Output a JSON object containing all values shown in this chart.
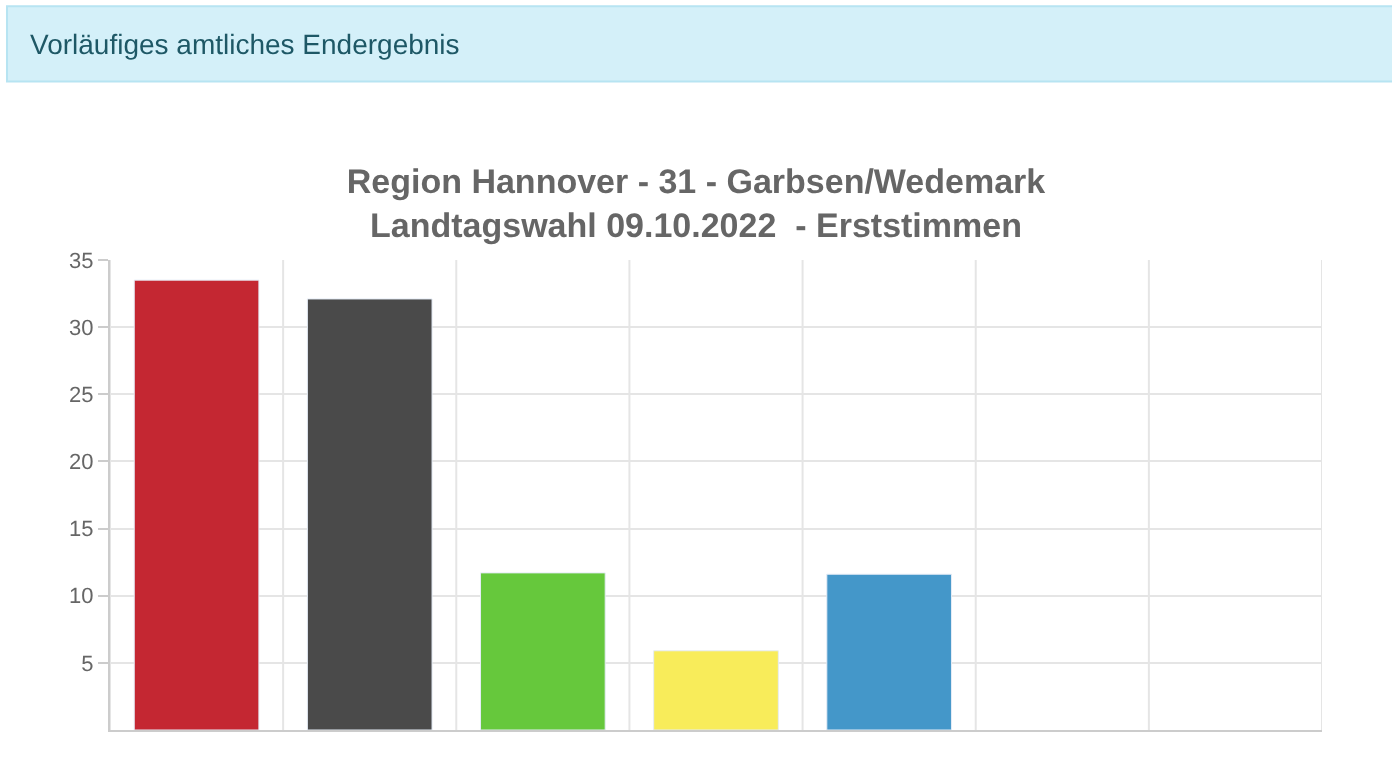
{
  "chart_data": {
    "type": "bar",
    "title": "Region Hannover - 31 - Garbsen/Wedemark\nLandtagswahl 09.10.2022  - Erststimmen",
    "annotations": [
      "Vorläufiges amtliches Endergebnis"
    ],
    "categories": [
      null,
      null,
      null,
      null,
      null,
      null,
      null
    ],
    "values": [
      33.5,
      32.1,
      11.7,
      5.9,
      11.6,
      null,
      null
    ],
    "colors": [
      "#c42732",
      "#4a4a4a",
      "#66c83c",
      "#f8ec5a",
      "#4497c9",
      "#cccccc",
      "#cccccc"
    ],
    "ylim": [
      0,
      35
    ],
    "yticks": [
      5,
      10,
      15,
      20,
      25,
      30,
      35
    ],
    "grid": true
  }
}
